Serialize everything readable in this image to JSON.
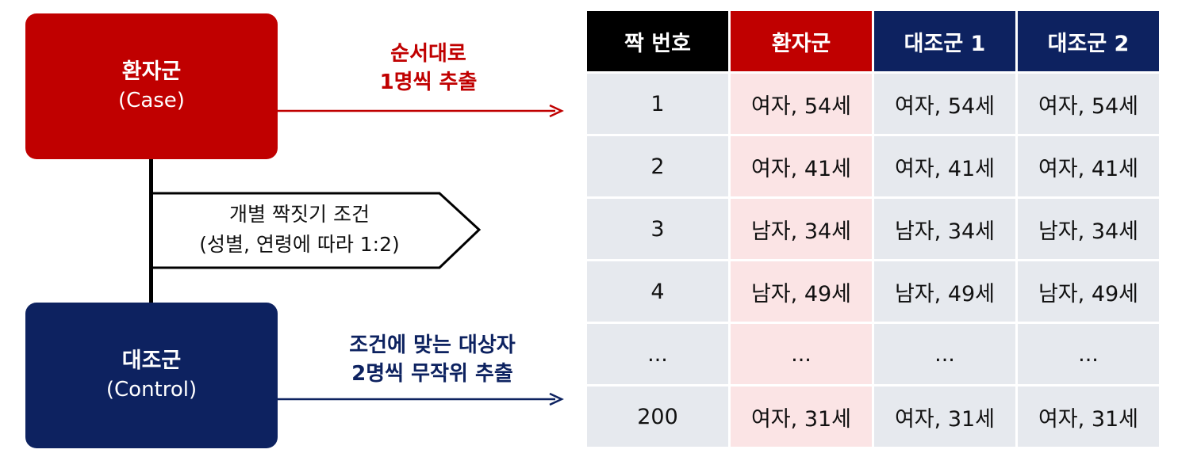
{
  "case_group": {
    "title": "환자군",
    "subtitle": "(Case)"
  },
  "control_group": {
    "title": "대조군",
    "subtitle": "(Control)"
  },
  "matching_condition": {
    "line1": "개별 짝짓기 조건",
    "line2": "(성별, 연령에 따라 1:2)"
  },
  "case_arrow": {
    "line1": "순서대로",
    "line2": "1명씩 추출"
  },
  "control_arrow": {
    "line1": "조건에 맞는 대상자",
    "line2": "2명씩 무작위 추출"
  },
  "colors": {
    "case": "#c00000",
    "control": "#0d2260",
    "header_pair": "#000000",
    "case_cell": "#fbe4e5",
    "cell": "#e6e9ee"
  },
  "table": {
    "headers": [
      "짝 번호",
      "환자군",
      "대조군 1",
      "대조군 2"
    ],
    "rows": [
      [
        "1",
        "여자, 54세",
        "여자, 54세",
        "여자, 54세"
      ],
      [
        "2",
        "여자, 41세",
        "여자, 41세",
        "여자, 41세"
      ],
      [
        "3",
        "남자, 34세",
        "남자, 34세",
        "남자, 34세"
      ],
      [
        "4",
        "남자, 49세",
        "남자, 49세",
        "남자, 49세"
      ],
      [
        "...",
        "...",
        "...",
        "..."
      ],
      [
        "200",
        "여자, 31세",
        "여자, 31세",
        "여자, 31세"
      ]
    ]
  }
}
